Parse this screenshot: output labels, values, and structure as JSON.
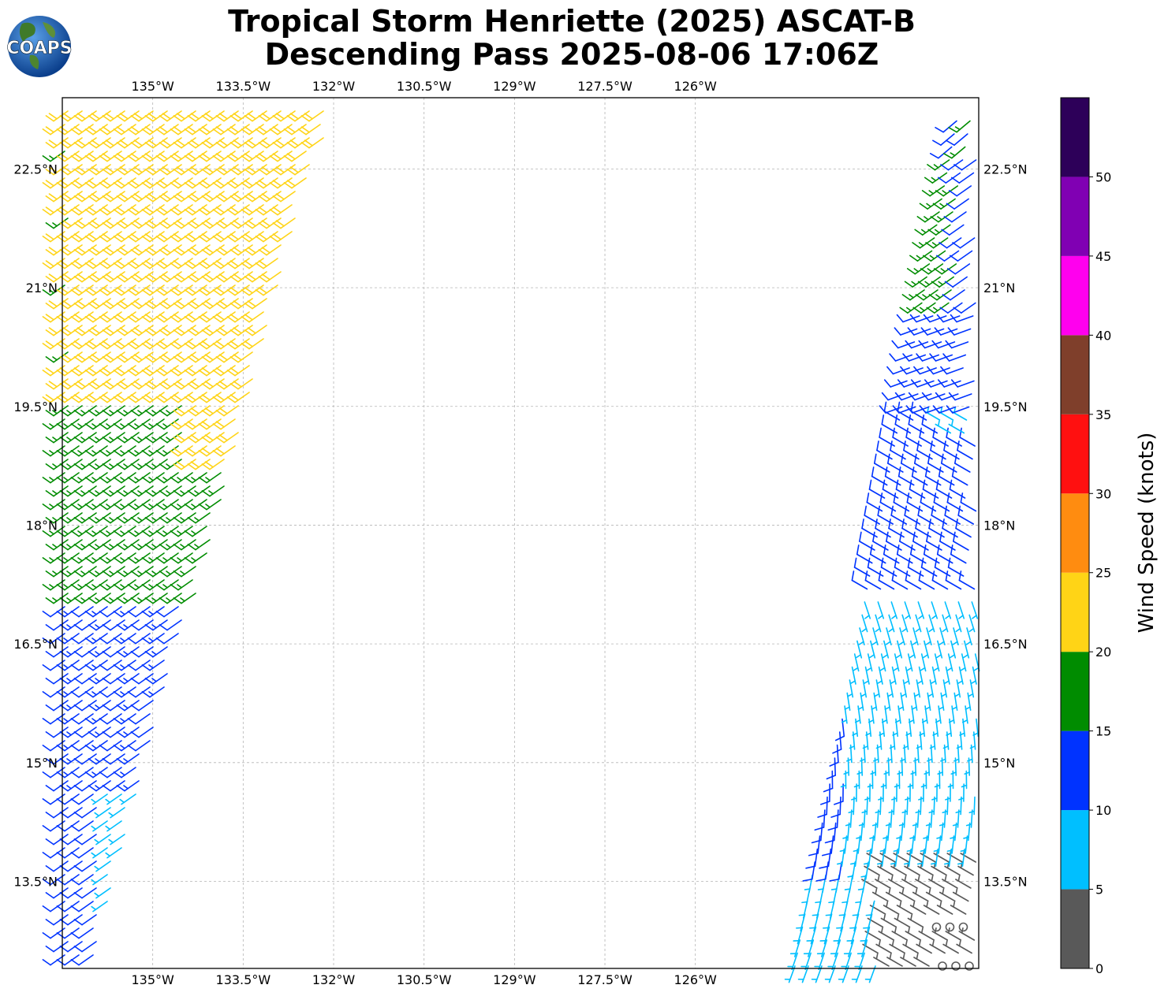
{
  "header": {
    "title_line1": "Tropical Storm Henriette (2025) ASCAT-B",
    "title_line2": "Descending Pass 2025-08-06 17:06Z",
    "logo_text": "COAPS"
  },
  "map": {
    "lon_range": [
      -136.5,
      -121.3
    ],
    "lat_range": [
      12.4,
      23.4
    ],
    "lon_ticks": [
      {
        "value": -135,
        "label": "135°W"
      },
      {
        "value": -133.5,
        "label": "133.5°W"
      },
      {
        "value": -132,
        "label": "132°W"
      },
      {
        "value": -130.5,
        "label": "130.5°W"
      },
      {
        "value": -129,
        "label": "129°W"
      },
      {
        "value": -127.5,
        "label": "127.5°W"
      },
      {
        "value": -126,
        "label": "126°W"
      }
    ],
    "lat_ticks": [
      {
        "value": 22.5,
        "label": "22.5°N"
      },
      {
        "value": 21,
        "label": "21°N"
      },
      {
        "value": 19.5,
        "label": "19.5°N"
      },
      {
        "value": 18,
        "label": "18°N"
      },
      {
        "value": 16.5,
        "label": "16.5°N"
      },
      {
        "value": 15,
        "label": "15°N"
      },
      {
        "value": 13.5,
        "label": "13.5°N"
      }
    ],
    "gridlines": true
  },
  "colorbar": {
    "label": "Wind Speed (knots)",
    "bins": [
      {
        "from": 0,
        "to": 5,
        "color": "#595959"
      },
      {
        "from": 5,
        "to": 10,
        "color": "#00bfff"
      },
      {
        "from": 10,
        "to": 15,
        "color": "#0033ff"
      },
      {
        "from": 15,
        "to": 20,
        "color": "#008c00"
      },
      {
        "from": 20,
        "to": 25,
        "color": "#ffd416"
      },
      {
        "from": 25,
        "to": 30,
        "color": "#ff8c10"
      },
      {
        "from": 30,
        "to": 35,
        "color": "#ff1010"
      },
      {
        "from": 35,
        "to": 40,
        "color": "#7f3f2b"
      },
      {
        "from": 40,
        "to": 45,
        "color": "#ff00ee"
      },
      {
        "from": 45,
        "to": 50,
        "color": "#8000b3"
      },
      {
        "from": 50,
        "to": 55,
        "color": "#2d0059"
      }
    ],
    "tick_labels": [
      "0",
      "5",
      "10",
      "15",
      "20",
      "25",
      "30",
      "35",
      "40",
      "45",
      "50"
    ]
  }
}
